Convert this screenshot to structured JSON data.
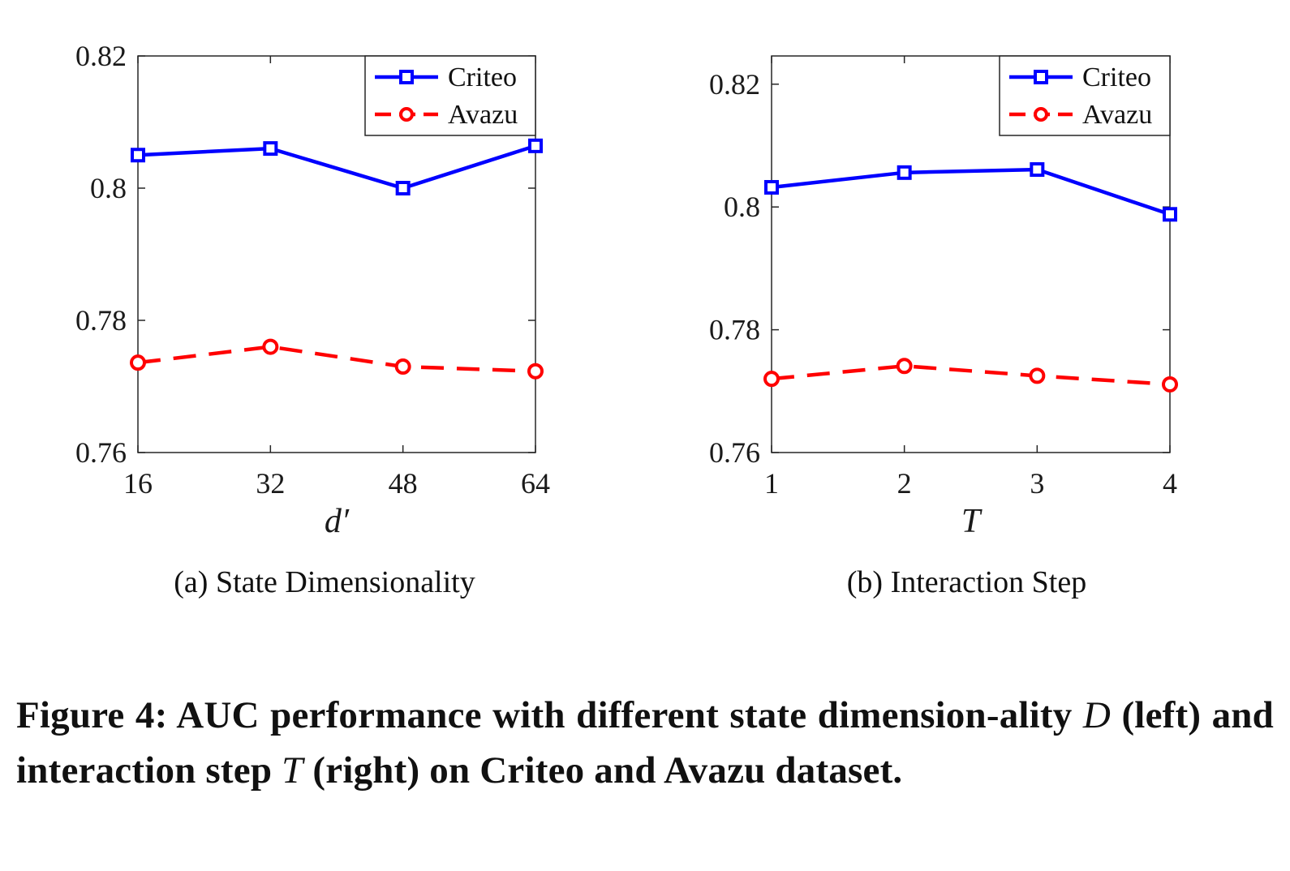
{
  "chart_data": [
    {
      "type": "line",
      "subcaption_label": "(a)",
      "subcaption_text": "State Dimensionality",
      "xlabel": "d′",
      "ylabel": "",
      "x": [
        16,
        32,
        48,
        64
      ],
      "x_tick_labels": [
        "16",
        "32",
        "48",
        "64"
      ],
      "y_ticks": [
        0.76,
        0.78,
        0.8,
        0.82
      ],
      "y_tick_labels": [
        "0.76",
        "0.78",
        "0.8",
        "0.82"
      ],
      "ylim": [
        0.76,
        0.82
      ],
      "xlim": [
        16,
        64
      ],
      "grid": false,
      "legend_position": "top-right",
      "series": [
        {
          "name": "Criteo",
          "color": "#0000ff",
          "style": "solid",
          "marker": "square",
          "values": [
            0.805,
            0.806,
            0.8,
            0.8064
          ]
        },
        {
          "name": "Avazu",
          "color": "#ff0000",
          "style": "dashed",
          "marker": "circle",
          "values": [
            0.7736,
            0.776,
            0.773,
            0.7723
          ]
        }
      ]
    },
    {
      "type": "line",
      "subcaption_label": "(b)",
      "subcaption_text": "Interaction Step",
      "xlabel": "T",
      "ylabel": "",
      "x": [
        1,
        2,
        3,
        4
      ],
      "x_tick_labels": [
        "1",
        "2",
        "3",
        "4"
      ],
      "y_ticks": [
        0.76,
        0.78,
        0.8,
        0.82
      ],
      "y_tick_labels": [
        "0.76",
        "0.78",
        "0.8",
        "0.82"
      ],
      "ylim": [
        0.76,
        0.8246
      ],
      "xlim": [
        1,
        4
      ],
      "grid": false,
      "legend_position": "top-right",
      "series": [
        {
          "name": "Criteo",
          "color": "#0000ff",
          "style": "solid",
          "marker": "square",
          "values": [
            0.8032,
            0.8056,
            0.8061,
            0.7988
          ]
        },
        {
          "name": "Avazu",
          "color": "#ff0000",
          "style": "dashed",
          "marker": "circle",
          "values": [
            0.772,
            0.7741,
            0.7725,
            0.7711
          ]
        }
      ]
    }
  ],
  "caption": {
    "prefix": "Figure 4: AUC performance with different state dimension-ality ",
    "var1": "D",
    "mid": " (left) and interaction step ",
    "var2": "T",
    "suffix": " (right) on Criteo and Avazu dataset."
  }
}
